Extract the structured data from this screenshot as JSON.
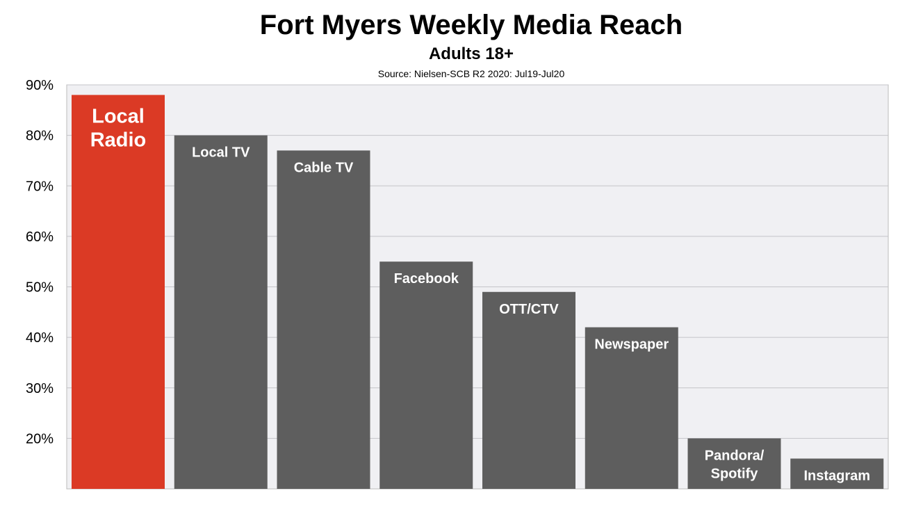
{
  "chart_data": {
    "type": "bar",
    "title": "Fort Myers Weekly Media Reach",
    "subtitle": "Adults 18+",
    "source": "Source: Nielsen-SCB R2 2020: Jul19-Jul20",
    "categories": [
      "Local Radio",
      "Local TV",
      "Cable TV",
      "Facebook",
      "OTT/CTV",
      "Newspaper",
      "Pandora/ Spotify",
      "Instagram"
    ],
    "label_lines": [
      [
        "Local",
        "Radio"
      ],
      [
        "Local TV"
      ],
      [
        "Cable TV"
      ],
      [
        "Facebook"
      ],
      [
        "OTT/CTV"
      ],
      [
        "Newspaper"
      ],
      [
        "Pandora/",
        "Spotify"
      ],
      [
        "Instagram"
      ]
    ],
    "values": [
      88,
      80,
      77,
      55,
      49,
      42,
      20,
      16
    ],
    "ylim": [
      10,
      90
    ],
    "yticks": [
      "20%",
      "30%",
      "40%",
      "50%",
      "60%",
      "70%",
      "80%",
      "90%"
    ],
    "grid": true,
    "highlight_color": "#DB3A25",
    "bar_color": "#5E5E5E",
    "plot_background": "#F0F0F3"
  }
}
